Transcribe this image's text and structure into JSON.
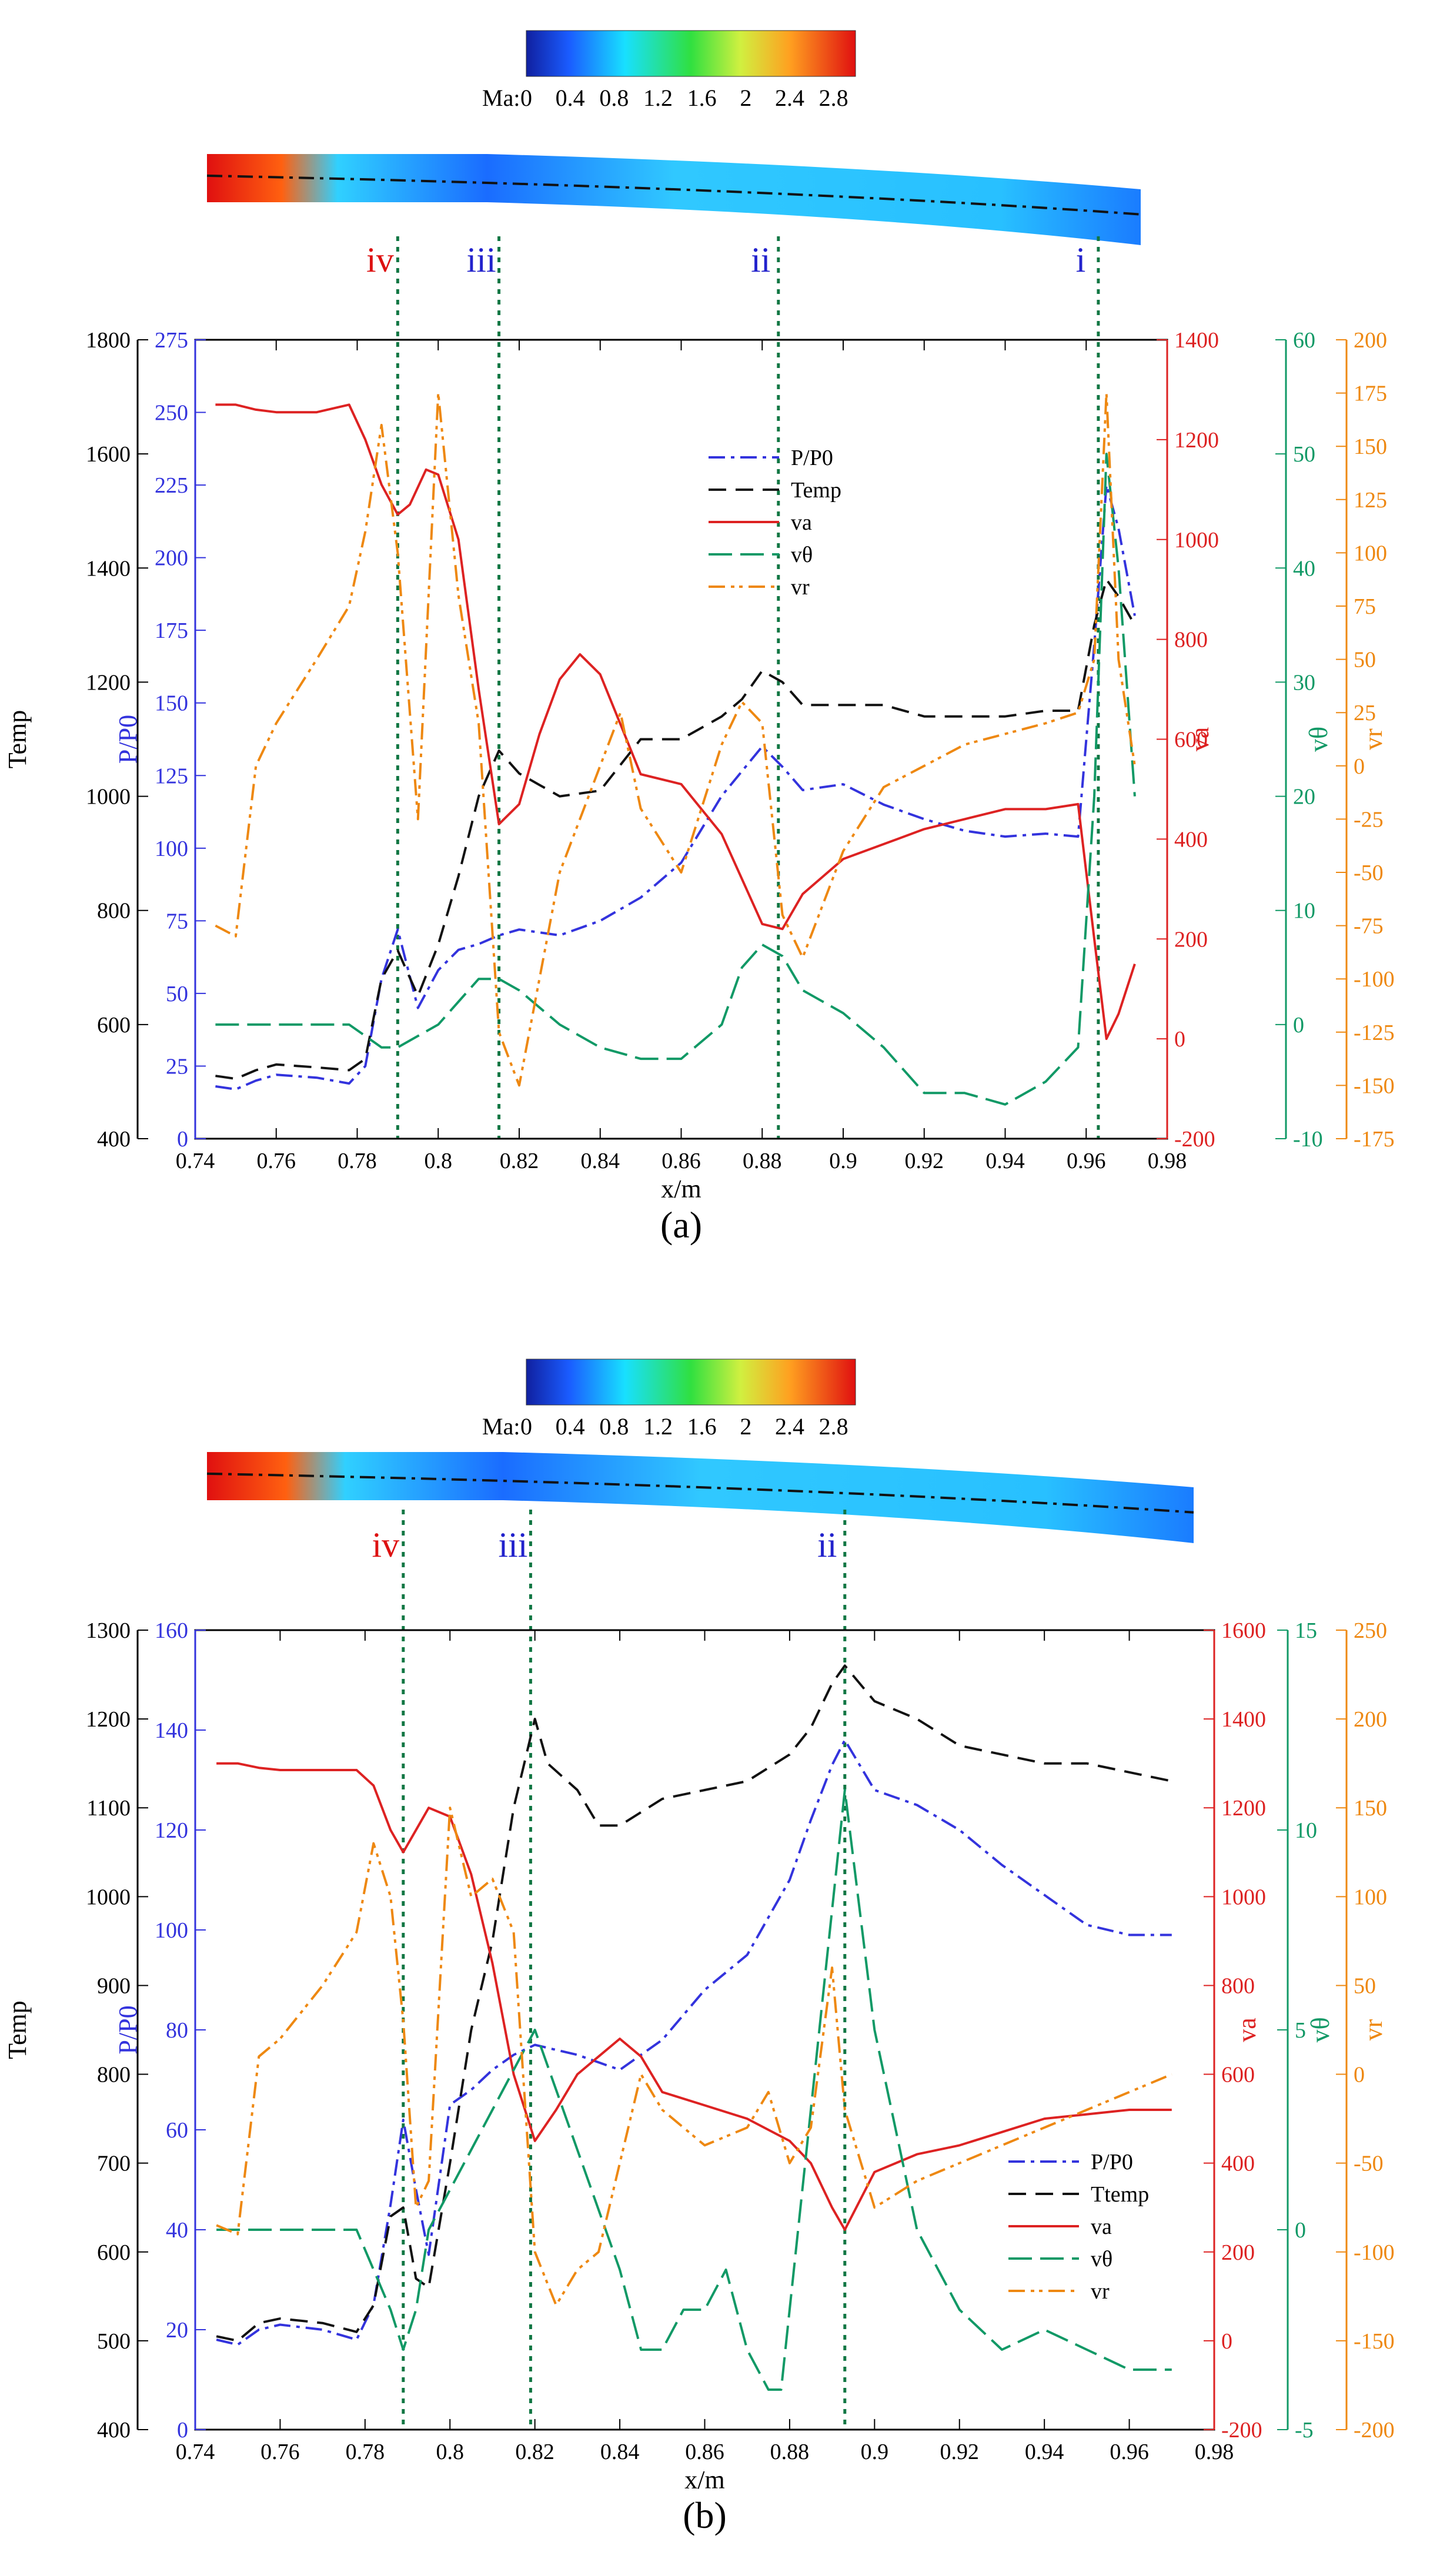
{
  "colorbar": {
    "label": "Ma:",
    "ticks": [
      "0",
      "0.4",
      "0.8",
      "1.2",
      "1.6",
      "2",
      "2.4",
      "2.8"
    ]
  },
  "colors": {
    "P": "#3333dd",
    "T": "#111111",
    "va": "#dd2222",
    "vth": "#119966",
    "vr": "#ee8811",
    "marker": "#117744",
    "roman_red": "#dd1111",
    "roman_blue": "#2222cc"
  },
  "legend_labels": {
    "P": "P/P₀",
    "va": "vₐ",
    "vth": "vθ",
    "vr": "vᵣ"
  },
  "chart_data": [
    {
      "id": "a",
      "type": "line",
      "caption": "(a)",
      "xlabel": "x/m",
      "xlim": [
        0.74,
        0.98
      ],
      "xticks": [
        "0.74",
        "0.76",
        "0.78",
        "0.8",
        "0.82",
        "0.84",
        "0.86",
        "0.88",
        "0.9",
        "0.92",
        "0.94",
        "0.96",
        "0.98"
      ],
      "markers": [
        {
          "label": "iv",
          "x": 0.79,
          "color": "red"
        },
        {
          "label": "iii",
          "x": 0.815,
          "color": "blue"
        },
        {
          "label": "ii",
          "x": 0.884,
          "color": "blue"
        },
        {
          "label": "i",
          "x": 0.963,
          "color": "blue"
        }
      ],
      "axes": {
        "T": {
          "label": "Temp",
          "lim": [
            400,
            1800
          ],
          "ticks": [
            "400",
            "600",
            "800",
            "1000",
            "1200",
            "1400",
            "1600",
            "1800"
          ]
        },
        "P": {
          "label": "P/P0",
          "lim": [
            0,
            275
          ],
          "ticks": [
            "0",
            "25",
            "50",
            "75",
            "100",
            "125",
            "150",
            "175",
            "200",
            "225",
            "250",
            "275"
          ]
        },
        "va": {
          "label": "va",
          "lim": [
            -200,
            1400
          ],
          "ticks": [
            "-200",
            "0",
            "200",
            "400",
            "600",
            "800",
            "1000",
            "1200",
            "1400"
          ]
        },
        "vth": {
          "label": "vθ",
          "lim": [
            -10,
            60
          ],
          "ticks": [
            "-10",
            "0",
            "10",
            "20",
            "30",
            "40",
            "50",
            "60"
          ]
        },
        "vr": {
          "label": "vr",
          "lim": [
            -175,
            200
          ],
          "ticks": [
            "-175",
            "-150",
            "-125",
            "-100",
            "-75",
            "-50",
            "-25",
            "0",
            "25",
            "50",
            "75",
            "100",
            "125",
            "150",
            "175",
            "200"
          ]
        }
      },
      "legend": {
        "placement": "top-center",
        "entries": [
          "P/P0",
          "Temp",
          "va",
          "vθ",
          "vr"
        ]
      },
      "series": [
        {
          "key": "P",
          "name": "P/P0",
          "x": [
            0.745,
            0.75,
            0.755,
            0.76,
            0.77,
            0.778,
            0.782,
            0.786,
            0.79,
            0.795,
            0.8,
            0.805,
            0.81,
            0.815,
            0.82,
            0.83,
            0.84,
            0.85,
            0.86,
            0.87,
            0.88,
            0.885,
            0.89,
            0.9,
            0.91,
            0.92,
            0.93,
            0.94,
            0.95,
            0.958,
            0.962,
            0.965,
            0.968,
            0.972
          ],
          "y": [
            18,
            17,
            20,
            22,
            21,
            19,
            25,
            55,
            72,
            45,
            58,
            65,
            67,
            70,
            72,
            70,
            75,
            83,
            95,
            118,
            135,
            128,
            120,
            122,
            115,
            110,
            106,
            104,
            105,
            104,
            170,
            225,
            210,
            180
          ]
        },
        {
          "key": "T",
          "name": "Temp",
          "x": [
            0.745,
            0.75,
            0.755,
            0.76,
            0.77,
            0.778,
            0.782,
            0.786,
            0.79,
            0.795,
            0.8,
            0.805,
            0.81,
            0.815,
            0.82,
            0.825,
            0.83,
            0.84,
            0.85,
            0.86,
            0.87,
            0.875,
            0.88,
            0.885,
            0.89,
            0.9,
            0.91,
            0.92,
            0.93,
            0.94,
            0.95,
            0.958,
            0.962,
            0.965,
            0.968,
            0.972
          ],
          "y": [
            510,
            505,
            520,
            530,
            525,
            520,
            540,
            680,
            730,
            650,
            740,
            860,
            1000,
            1080,
            1040,
            1020,
            1000,
            1010,
            1100,
            1100,
            1140,
            1170,
            1220,
            1200,
            1160,
            1160,
            1160,
            1140,
            1140,
            1140,
            1150,
            1150,
            1300,
            1380,
            1350,
            1300
          ]
        },
        {
          "key": "va",
          "name": "va",
          "x": [
            0.745,
            0.75,
            0.755,
            0.76,
            0.77,
            0.778,
            0.782,
            0.786,
            0.79,
            0.793,
            0.797,
            0.8,
            0.805,
            0.81,
            0.815,
            0.82,
            0.825,
            0.83,
            0.835,
            0.84,
            0.845,
            0.85,
            0.86,
            0.87,
            0.88,
            0.885,
            0.89,
            0.9,
            0.91,
            0.92,
            0.93,
            0.94,
            0.95,
            0.958,
            0.962,
            0.965,
            0.968,
            0.972
          ],
          "y": [
            1270,
            1270,
            1260,
            1255,
            1255,
            1270,
            1200,
            1110,
            1050,
            1070,
            1140,
            1130,
            1000,
            700,
            430,
            470,
            610,
            720,
            770,
            730,
            630,
            530,
            510,
            410,
            230,
            220,
            290,
            360,
            390,
            420,
            440,
            460,
            460,
            470,
            200,
            0,
            50,
            150
          ]
        },
        {
          "key": "vth",
          "name": "vθ",
          "x": [
            0.745,
            0.76,
            0.77,
            0.778,
            0.782,
            0.786,
            0.79,
            0.795,
            0.8,
            0.805,
            0.81,
            0.815,
            0.82,
            0.83,
            0.84,
            0.85,
            0.86,
            0.87,
            0.875,
            0.88,
            0.885,
            0.89,
            0.9,
            0.91,
            0.92,
            0.93,
            0.94,
            0.95,
            0.958,
            0.962,
            0.965,
            0.968,
            0.972
          ],
          "y": [
            0,
            0,
            0,
            0,
            -1,
            -2,
            -2,
            -1,
            0,
            2,
            4,
            4,
            3,
            0,
            -2,
            -3,
            -3,
            0,
            5,
            7,
            6,
            3,
            1,
            -2,
            -6,
            -6,
            -7,
            -5,
            -2,
            20,
            50,
            40,
            20
          ]
        },
        {
          "key": "vr",
          "name": "vr",
          "x": [
            0.745,
            0.75,
            0.755,
            0.76,
            0.77,
            0.778,
            0.782,
            0.786,
            0.79,
            0.795,
            0.8,
            0.805,
            0.81,
            0.815,
            0.82,
            0.825,
            0.83,
            0.84,
            0.845,
            0.85,
            0.86,
            0.87,
            0.875,
            0.88,
            0.885,
            0.89,
            0.9,
            0.91,
            0.92,
            0.93,
            0.94,
            0.95,
            0.958,
            0.962,
            0.965,
            0.968,
            0.972
          ],
          "y": [
            -75,
            -80,
            0,
            20,
            50,
            75,
            110,
            160,
            100,
            -25,
            175,
            80,
            20,
            -125,
            -150,
            -100,
            -50,
            0,
            25,
            -20,
            -50,
            10,
            30,
            20,
            -70,
            -90,
            -40,
            -10,
            0,
            10,
            15,
            20,
            25,
            50,
            175,
            50,
            0
          ]
        }
      ]
    },
    {
      "id": "b",
      "type": "line",
      "caption": "(b)",
      "xlabel": "x/m",
      "xlim": [
        0.74,
        0.98
      ],
      "xticks": [
        "0.74",
        "0.76",
        "0.78",
        "0.8",
        "0.82",
        "0.84",
        "0.86",
        "0.88",
        "0.9",
        "0.92",
        "0.94",
        "0.96",
        "0.98"
      ],
      "markers": [
        {
          "label": "iv",
          "x": 0.789,
          "color": "red"
        },
        {
          "label": "iii",
          "x": 0.819,
          "color": "blue"
        },
        {
          "label": "ii",
          "x": 0.893,
          "color": "blue"
        }
      ],
      "axes": {
        "T": {
          "label": "Temp",
          "lim": [
            400,
            1300
          ],
          "ticks": [
            "400",
            "500",
            "600",
            "700",
            "800",
            "900",
            "1000",
            "1100",
            "1200",
            "1300"
          ]
        },
        "P": {
          "label": "P/P0",
          "lim": [
            0,
            160
          ],
          "ticks": [
            "0",
            "20",
            "40",
            "60",
            "80",
            "100",
            "120",
            "140",
            "160"
          ]
        },
        "va": {
          "label": "va",
          "lim": [
            -200,
            1600
          ],
          "ticks": [
            "-200",
            "0",
            "200",
            "400",
            "600",
            "800",
            "1000",
            "1200",
            "1400",
            "1600"
          ]
        },
        "vth": {
          "label": "vθ",
          "lim": [
            -5,
            15
          ],
          "ticks": [
            "-5",
            "0",
            "5",
            "10",
            "15"
          ]
        },
        "vr": {
          "label": "vr",
          "lim": [
            -200,
            250
          ],
          "ticks": [
            "-200",
            "-150",
            "-100",
            "-50",
            "0",
            "50",
            "100",
            "150",
            "200",
            "250"
          ]
        }
      },
      "legend": {
        "placement": "bottom-right",
        "entries": [
          "P/P0",
          "Ttemp",
          "va",
          "vθ",
          "vr"
        ]
      },
      "series": [
        {
          "key": "P",
          "name": "P/P0",
          "x": [
            0.745,
            0.75,
            0.755,
            0.76,
            0.77,
            0.778,
            0.782,
            0.786,
            0.789,
            0.792,
            0.795,
            0.8,
            0.805,
            0.81,
            0.815,
            0.82,
            0.83,
            0.84,
            0.85,
            0.86,
            0.87,
            0.88,
            0.885,
            0.89,
            0.893,
            0.9,
            0.91,
            0.92,
            0.93,
            0.94,
            0.95,
            0.96,
            0.97
          ],
          "y": [
            18,
            17,
            20,
            21,
            20,
            18,
            25,
            45,
            62,
            48,
            35,
            65,
            68,
            72,
            75,
            77,
            75,
            72,
            78,
            88,
            95,
            110,
            122,
            133,
            138,
            128,
            125,
            120,
            113,
            107,
            101,
            99,
            99
          ]
        },
        {
          "key": "T",
          "name": "Ttemp",
          "x": [
            0.745,
            0.75,
            0.755,
            0.76,
            0.77,
            0.778,
            0.782,
            0.786,
            0.789,
            0.792,
            0.795,
            0.8,
            0.805,
            0.81,
            0.815,
            0.82,
            0.823,
            0.83,
            0.835,
            0.84,
            0.85,
            0.86,
            0.87,
            0.88,
            0.885,
            0.89,
            0.893,
            0.9,
            0.91,
            0.92,
            0.93,
            0.94,
            0.95,
            0.96,
            0.97
          ],
          "y": [
            505,
            500,
            520,
            525,
            520,
            510,
            540,
            640,
            650,
            570,
            560,
            700,
            850,
            950,
            1100,
            1200,
            1150,
            1120,
            1080,
            1080,
            1110,
            1120,
            1130,
            1160,
            1190,
            1240,
            1260,
            1220,
            1200,
            1170,
            1160,
            1150,
            1150,
            1140,
            1130
          ]
        },
        {
          "key": "va",
          "name": "va",
          "x": [
            0.745,
            0.75,
            0.755,
            0.76,
            0.77,
            0.778,
            0.782,
            0.786,
            0.789,
            0.792,
            0.795,
            0.8,
            0.805,
            0.81,
            0.815,
            0.82,
            0.825,
            0.83,
            0.835,
            0.84,
            0.845,
            0.85,
            0.86,
            0.87,
            0.88,
            0.885,
            0.89,
            0.893,
            0.9,
            0.91,
            0.92,
            0.93,
            0.94,
            0.95,
            0.96,
            0.97
          ],
          "y": [
            1300,
            1300,
            1290,
            1285,
            1285,
            1285,
            1250,
            1150,
            1100,
            1150,
            1200,
            1180,
            1050,
            850,
            600,
            450,
            520,
            600,
            640,
            680,
            640,
            560,
            530,
            500,
            450,
            400,
            300,
            250,
            380,
            420,
            440,
            470,
            500,
            510,
            520,
            520
          ]
        },
        {
          "key": "vth",
          "name": "vθ",
          "x": [
            0.745,
            0.76,
            0.77,
            0.778,
            0.782,
            0.786,
            0.789,
            0.792,
            0.795,
            0.8,
            0.805,
            0.81,
            0.815,
            0.82,
            0.83,
            0.84,
            0.845,
            0.85,
            0.855,
            0.86,
            0.865,
            0.87,
            0.875,
            0.878,
            0.88,
            0.885,
            0.89,
            0.893,
            0.9,
            0.91,
            0.92,
            0.93,
            0.94,
            0.95,
            0.96,
            0.97
          ],
          "y": [
            0,
            0,
            0,
            0,
            -1,
            -2,
            -3,
            -2,
            0,
            1,
            2,
            3,
            4,
            5,
            2,
            -1,
            -3,
            -3,
            -2,
            -2,
            -1,
            -3,
            -4,
            -4,
            -2,
            3,
            8,
            11,
            5,
            0,
            -2,
            -3,
            -2.5,
            -3,
            -3.5,
            -3.5
          ]
        },
        {
          "key": "vr",
          "name": "vr",
          "x": [
            0.745,
            0.75,
            0.755,
            0.76,
            0.77,
            0.778,
            0.782,
            0.786,
            0.789,
            0.792,
            0.795,
            0.8,
            0.805,
            0.81,
            0.815,
            0.82,
            0.825,
            0.83,
            0.835,
            0.84,
            0.845,
            0.85,
            0.86,
            0.87,
            0.875,
            0.88,
            0.885,
            0.89,
            0.893,
            0.9,
            0.91,
            0.92,
            0.93,
            0.94,
            0.95,
            0.96,
            0.97
          ],
          "y": [
            -85,
            -90,
            10,
            20,
            50,
            80,
            130,
            100,
            30,
            -75,
            -60,
            150,
            100,
            110,
            80,
            -100,
            -130,
            -110,
            -100,
            -50,
            0,
            -20,
            -40,
            -30,
            -10,
            -50,
            -30,
            60,
            -20,
            -75,
            -60,
            -50,
            -40,
            -30,
            -20,
            -10,
            0
          ]
        }
      ]
    }
  ]
}
